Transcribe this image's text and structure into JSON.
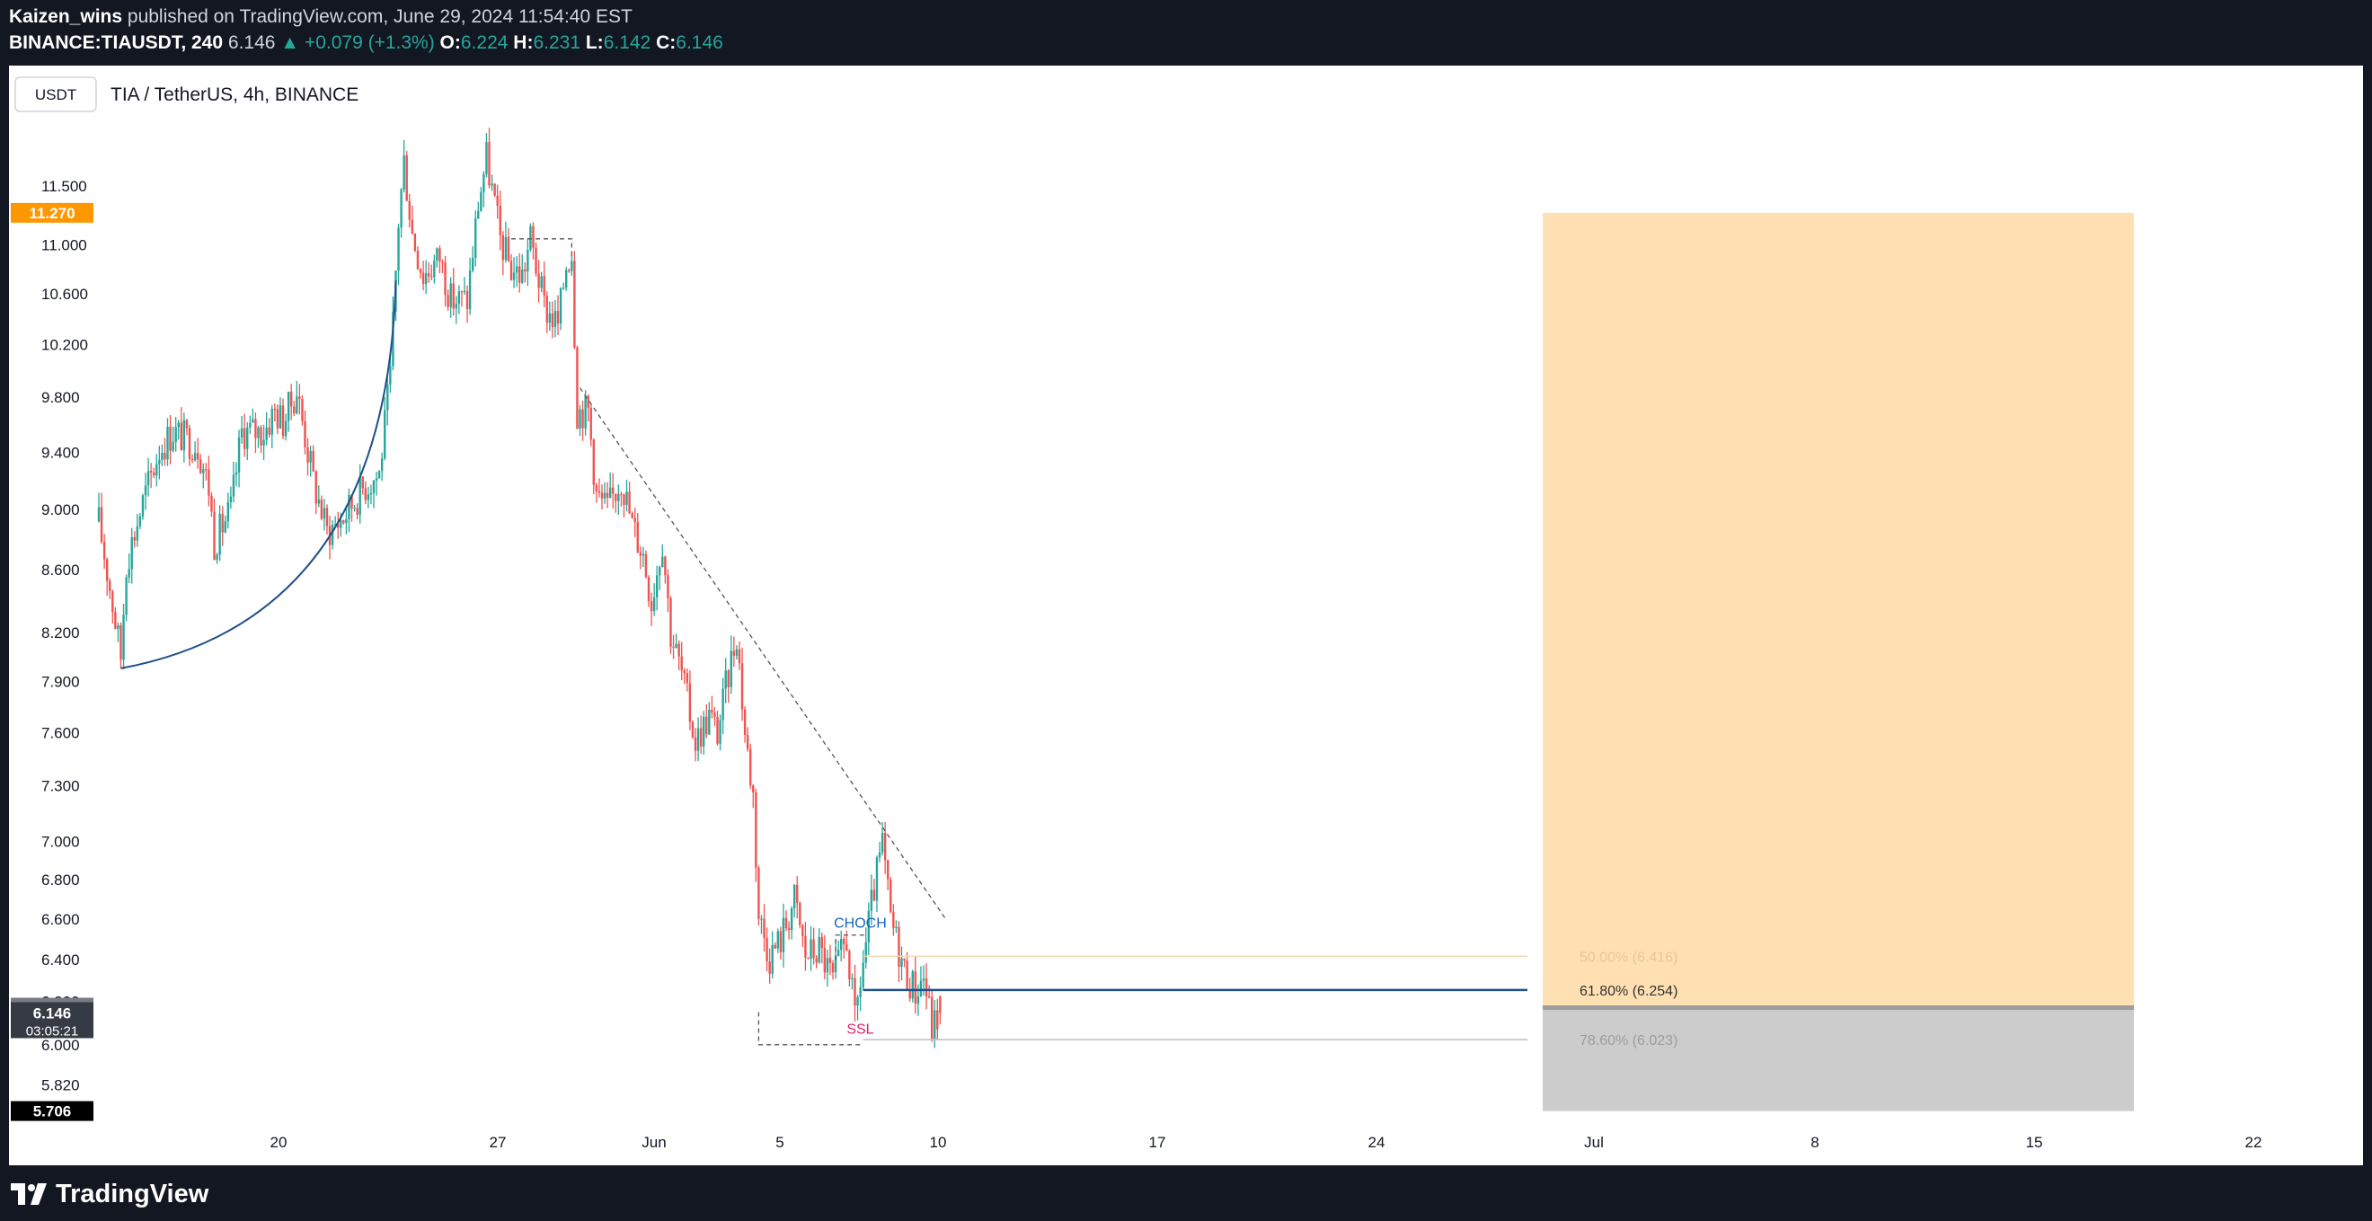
{
  "header": {
    "author": "Kaizen_wins",
    "published_text": "published on TradingView.com, June 29, 2024 11:54:40 EST",
    "symbol": "BINANCE:TIAUSDT, 240",
    "last": "6.146",
    "change": "+0.079 (+1.3%)",
    "o_label": "O:",
    "o": "6.224",
    "h_label": "H:",
    "h": "6.231",
    "l_label": "L:",
    "l": "6.142",
    "c_label": "C:",
    "c": "6.146"
  },
  "legend": {
    "currency_button": "USDT",
    "title": "TIA / TetherUS, 4h, BINANCE"
  },
  "footer": {
    "brand": "TradingView"
  },
  "colors": {
    "up": "#26a69a",
    "down": "#ef5350",
    "target_zone": "#ffe0b2",
    "stop_zone": "#cccccc",
    "curve": "#1e4f8a"
  },
  "chart_data": {
    "type": "candlestick",
    "y_scale": "log",
    "ylim": [
      5.72,
      12.6
    ],
    "y_ticks": [
      11.5,
      11.0,
      10.6,
      10.2,
      9.8,
      9.4,
      9.0,
      8.6,
      8.2,
      7.9,
      7.6,
      7.3,
      7.0,
      6.8,
      6.6,
      6.4,
      6.2,
      6.0,
      5.82
    ],
    "y_tick_labels": [
      "11.500",
      "11.000",
      "10.600",
      "10.200",
      "9.800",
      "9.400",
      "9.000",
      "8.600",
      "8.200",
      "7.900",
      "7.600",
      "7.300",
      "7.000",
      "6.800",
      "6.600",
      "6.400",
      "6.200",
      "6.000",
      "5.820"
    ],
    "x_ticks": [
      "20",
      "27",
      "Jun",
      "5",
      "10",
      "17",
      "24",
      "Jul",
      "8",
      "15",
      "22"
    ],
    "price_badges": [
      {
        "value": 11.27,
        "label": "11.270",
        "color": "#ff9800"
      },
      {
        "value": 6.171,
        "label": "6.171",
        "color": "#787b86"
      },
      {
        "value": 6.146,
        "label": "6.146",
        "countdown": "03:05:21",
        "color": "#363a45"
      },
      {
        "value": 5.706,
        "label": "5.706",
        "color": "#000000"
      }
    ],
    "fib_levels": [
      {
        "label": "50.00% (6.416)",
        "value": 6.416
      },
      {
        "label": "61.80% (6.254)",
        "value": 6.254
      },
      {
        "label": "78.60% (6.023)",
        "value": 6.023
      }
    ],
    "annotations": [
      "CHOCH",
      "SSL"
    ],
    "position": {
      "target": 11.27,
      "entry": 6.171,
      "stop": 5.706
    },
    "trendline": {
      "from": 9.87,
      "to": 6.6
    },
    "anchors": [
      {
        "t": 0,
        "p": 8.92
      },
      {
        "t": 5,
        "p": 8.38
      },
      {
        "t": 8,
        "p": 8.05
      },
      {
        "t": 10,
        "p": 8.65
      },
      {
        "t": 16,
        "p": 9.05
      },
      {
        "t": 22,
        "p": 9.42
      },
      {
        "t": 27,
        "p": 9.55
      },
      {
        "t": 36,
        "p": 9.45
      },
      {
        "t": 40,
        "p": 9.15
      },
      {
        "t": 42,
        "p": 8.78
      },
      {
        "t": 48,
        "p": 9.0
      },
      {
        "t": 52,
        "p": 9.55
      },
      {
        "t": 60,
        "p": 9.55
      },
      {
        "t": 64,
        "p": 9.7
      },
      {
        "t": 67,
        "p": 9.62
      },
      {
        "t": 72,
        "p": 9.85
      },
      {
        "t": 78,
        "p": 9.2
      },
      {
        "t": 83,
        "p": 8.85
      },
      {
        "t": 89,
        "p": 8.95
      },
      {
        "t": 96,
        "p": 9.15
      },
      {
        "t": 102,
        "p": 9.25
      },
      {
        "t": 106,
        "p": 9.95
      },
      {
        "t": 109,
        "p": 11.2
      },
      {
        "t": 111,
        "p": 11.72
      },
      {
        "t": 114,
        "p": 11.1
      },
      {
        "t": 118,
        "p": 10.75
      },
      {
        "t": 124,
        "p": 10.9
      },
      {
        "t": 128,
        "p": 10.55
      },
      {
        "t": 134,
        "p": 10.55
      },
      {
        "t": 138,
        "p": 11.35
      },
      {
        "t": 141,
        "p": 11.75
      },
      {
        "t": 146,
        "p": 11.05
      },
      {
        "t": 150,
        "p": 10.8
      },
      {
        "t": 154,
        "p": 10.75
      },
      {
        "t": 157,
        "p": 11.05
      },
      {
        "t": 162,
        "p": 10.5
      },
      {
        "t": 167,
        "p": 10.35
      },
      {
        "t": 170,
        "p": 10.85
      },
      {
        "t": 172,
        "p": 10.95
      },
      {
        "t": 174,
        "p": 9.7
      },
      {
        "t": 178,
        "p": 9.7
      },
      {
        "t": 181,
        "p": 9.1
      },
      {
        "t": 185,
        "p": 9.0
      },
      {
        "t": 190,
        "p": 9.22
      },
      {
        "t": 194,
        "p": 8.9
      },
      {
        "t": 198,
        "p": 8.7
      },
      {
        "t": 201,
        "p": 8.4
      },
      {
        "t": 205,
        "p": 8.8
      },
      {
        "t": 208,
        "p": 8.2
      },
      {
        "t": 212,
        "p": 7.95
      },
      {
        "t": 217,
        "p": 7.55
      },
      {
        "t": 222,
        "p": 7.7
      },
      {
        "t": 225,
        "p": 7.6
      },
      {
        "t": 229,
        "p": 7.95
      },
      {
        "t": 232,
        "p": 8.2
      },
      {
        "t": 235,
        "p": 7.6
      },
      {
        "t": 238,
        "p": 7.25
      },
      {
        "t": 240,
        "p": 6.62
      },
      {
        "t": 244,
        "p": 6.42
      },
      {
        "t": 248,
        "p": 6.5
      },
      {
        "t": 253,
        "p": 6.7
      },
      {
        "t": 257,
        "p": 6.42
      },
      {
        "t": 262,
        "p": 6.45
      },
      {
        "t": 267,
        "p": 6.3
      },
      {
        "t": 272,
        "p": 6.5
      },
      {
        "t": 275,
        "p": 6.1
      },
      {
        "t": 277,
        "p": 6.3
      },
      {
        "t": 282,
        "p": 6.75
      },
      {
        "t": 285,
        "p": 6.98
      },
      {
        "t": 288,
        "p": 6.6
      },
      {
        "t": 293,
        "p": 6.35
      },
      {
        "t": 297,
        "p": 6.25
      },
      {
        "t": 300,
        "p": 6.32
      },
      {
        "t": 303,
        "p": 6.08
      },
      {
        "t": 306,
        "p": 6.146
      }
    ]
  }
}
